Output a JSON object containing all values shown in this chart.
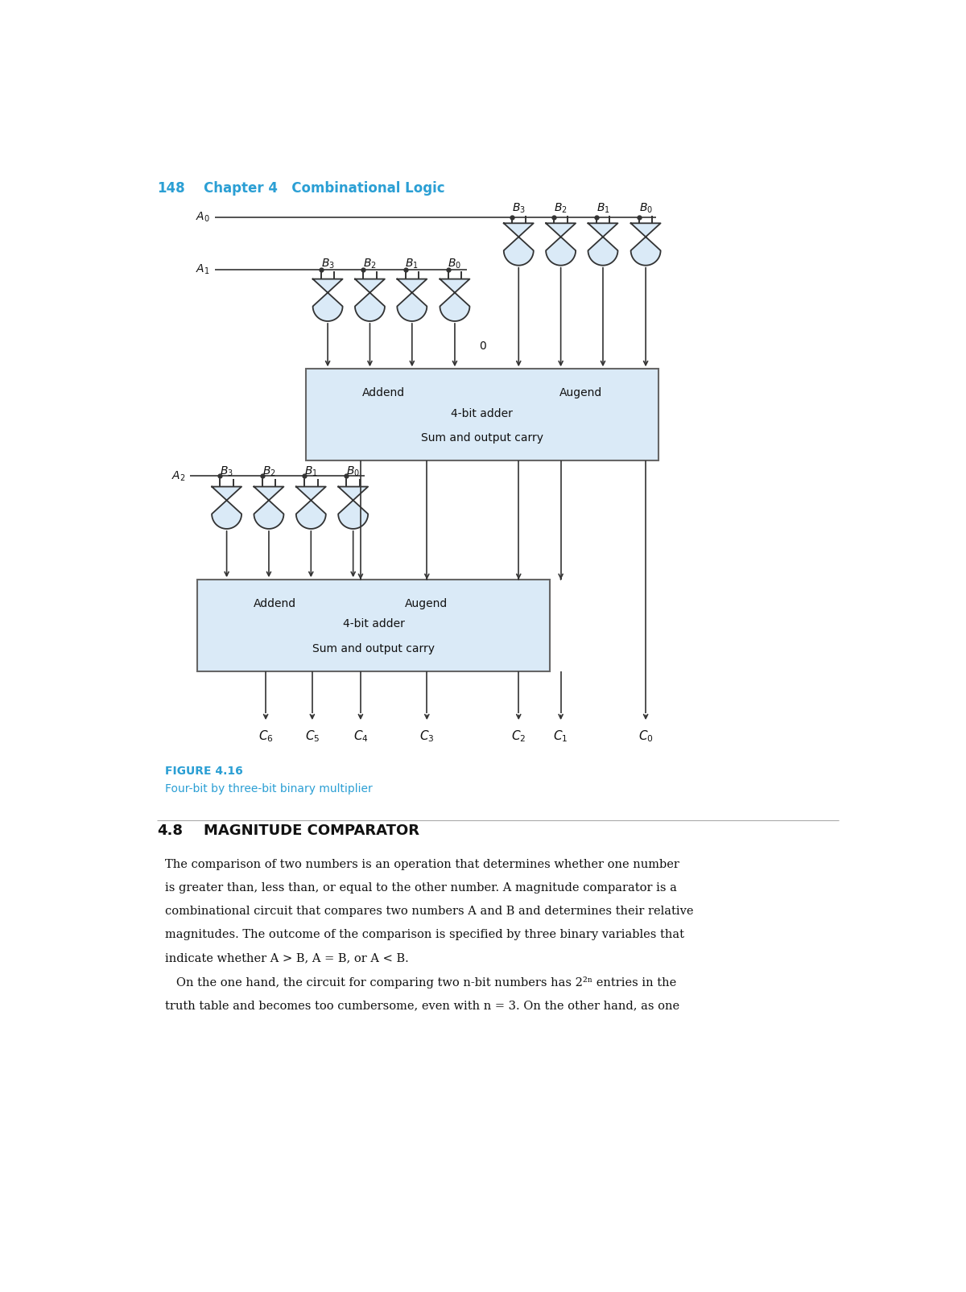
{
  "page_num": "148",
  "chapter_title": "Chapter 4   Combinational Logic",
  "header_color": "#2b9fd4",
  "fig_label": "FIGURE 4.16",
  "fig_caption": "Four-bit by three-bit binary multiplier",
  "section_num": "4.8",
  "section_title": "MAGNITUDE COMPARATOR",
  "adder_fill": "#daeaf7",
  "adder_stroke": "#666666",
  "gate_fill": "#daeaf7",
  "gate_stroke": "#333333",
  "line_color": "#333333",
  "dot_color": "#333333",
  "text_color": "#111111",
  "body_text_lines": [
    "The comparison of two numbers is an operation that determines whether one number",
    "is greater than, less than, or equal to the other number. A magnitude comparator is a",
    "combinational circuit that compares two numbers A and B and determines their relative",
    "magnitudes. The outcome of the comparison is specified by three binary variables that",
    "indicate whether A > B, A = B, or A < B.",
    "   On the one hand, the circuit for comparing two n-bit numbers has 2²ⁿ entries in the",
    "truth table and becomes too cumbersome, even with n = 3. On the other hand, as one"
  ]
}
